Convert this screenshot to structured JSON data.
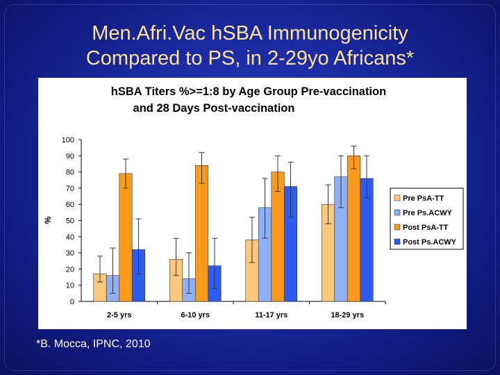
{
  "slide": {
    "title_line1": "Men.Afri.Vac hSBA Immunogenicity",
    "title_line2": "Compared to PS, in 2-29yo Africans*",
    "footnote": "*B. Mocca, IPNC, 2010"
  },
  "colors": {
    "background": "#1a2aa0",
    "title": "#ffe39a",
    "pre_psa_tt": "#fcc87a",
    "pre_psacwy": "#8fb0f5",
    "post_psa_tt": "#fb9a1b",
    "post_psacwy": "#2f5cf0"
  },
  "chart_data": {
    "type": "bar",
    "title_line1": "hSBA Titers %>=1:8 by Age Group Pre-vaccination",
    "title_line2": "and 28 Days Post-vaccination",
    "xlabel": "",
    "ylabel": "%",
    "ylim": [
      0,
      100
    ],
    "yticks": [
      0,
      10,
      20,
      30,
      40,
      50,
      60,
      70,
      80,
      90,
      100
    ],
    "categories": [
      "2-5 yrs",
      "6-10 yrs",
      "11-17 yrs",
      "18-29 yrs"
    ],
    "legend_position": "right",
    "series": [
      {
        "name": "Pre PsA-TT",
        "color": "#fcc87a",
        "values": [
          17,
          26,
          38,
          60
        ],
        "err_low": [
          12,
          16,
          24,
          48
        ],
        "err_high": [
          28,
          39,
          52,
          72
        ]
      },
      {
        "name": "Pre Ps.ACWY",
        "color": "#8fb0f5",
        "values": [
          16,
          14,
          58,
          77
        ],
        "err_low": [
          5,
          5,
          39,
          58
        ],
        "err_high": [
          33,
          30,
          76,
          90
        ]
      },
      {
        "name": "Post PsA-TT",
        "color": "#fb9a1b",
        "values": [
          79,
          84,
          80,
          90
        ],
        "err_low": [
          70,
          73,
          68,
          82
        ],
        "err_high": [
          88,
          92,
          90,
          96
        ]
      },
      {
        "name": "Post Ps.ACWY",
        "color": "#2f5cf0",
        "values": [
          32,
          22,
          71,
          76
        ],
        "err_low": [
          17,
          8,
          52,
          64
        ],
        "err_high": [
          51,
          39,
          86,
          90
        ]
      }
    ]
  }
}
